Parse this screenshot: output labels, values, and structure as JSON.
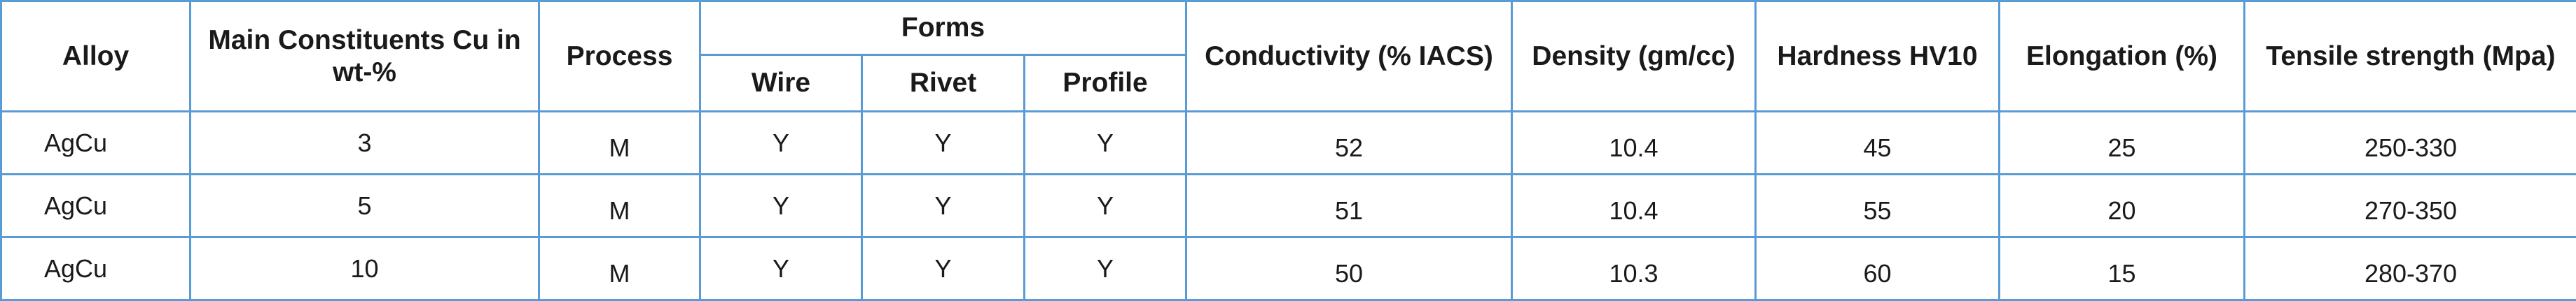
{
  "table": {
    "headers": {
      "alloy": "Alloy",
      "constituents": "Main Constituents Cu in wt-%",
      "process": "Process",
      "forms": "Forms",
      "wire": "Wire",
      "rivet": "Rivet",
      "profile": "Profile",
      "conductivity": "Conductivity (% IACS)",
      "density": "Density (gm/cc)",
      "hardness": "Hardness HV10",
      "elongation": "Elongation (%)",
      "tensile": "Tensile strength (Mpa)"
    },
    "rows": [
      {
        "alloy": "AgCu",
        "cu": "3",
        "process": "M",
        "wire": "Y",
        "rivet": "Y",
        "profile": "Y",
        "conductivity": "52",
        "density": "10.4",
        "hardness": "45",
        "elongation": "25",
        "tensile": "250-330"
      },
      {
        "alloy": "AgCu",
        "cu": "5",
        "process": "M",
        "wire": "Y",
        "rivet": "Y",
        "profile": "Y",
        "conductivity": "51",
        "density": "10.4",
        "hardness": "55",
        "elongation": "20",
        "tensile": "270-350"
      },
      {
        "alloy": "AgCu",
        "cu": "10",
        "process": "M",
        "wire": "Y",
        "rivet": "Y",
        "profile": "Y",
        "conductivity": "50",
        "density": "10.3",
        "hardness": "60",
        "elongation": "15",
        "tensile": "280-370"
      }
    ],
    "border_color": "#5b9bd5"
  }
}
